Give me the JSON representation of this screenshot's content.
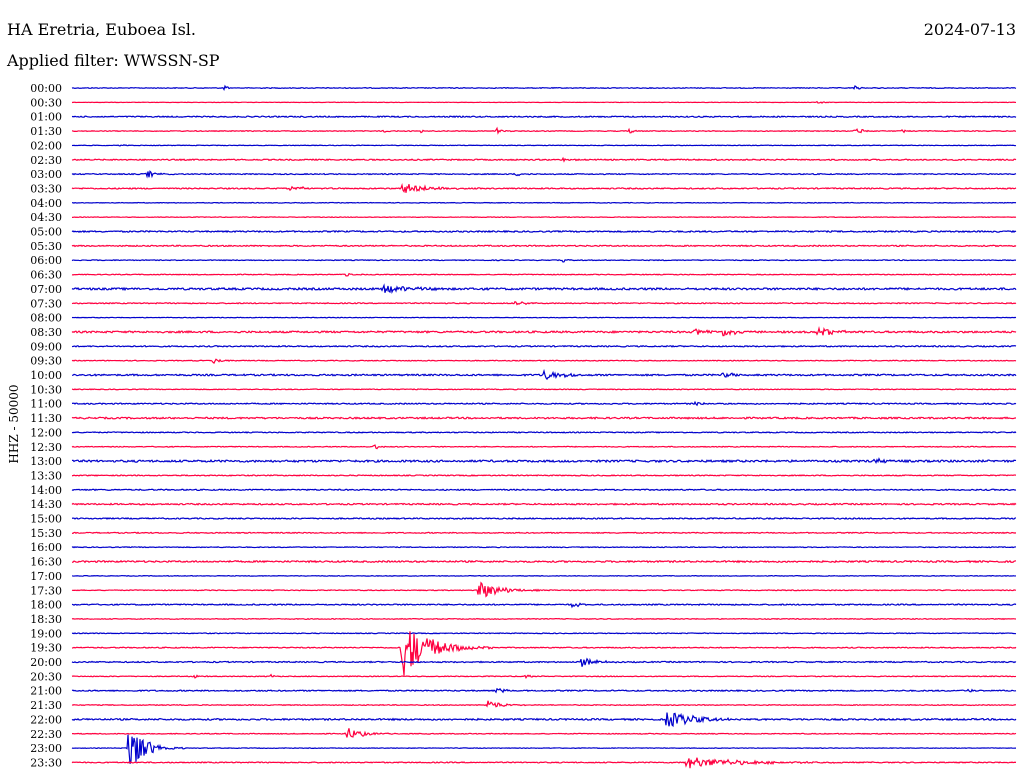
{
  "header": {
    "station": "HA Eretria, Euboea Isl.",
    "date": "2024-07-13",
    "filter": "Applied filter: WWSSN-SP"
  },
  "chart_data": {
    "type": "line",
    "channel_label": "HHZ - 50000",
    "colors": [
      "#0000cc",
      "#ff0040"
    ],
    "rows": [
      "00:00",
      "00:30",
      "01:00",
      "01:30",
      "02:00",
      "02:30",
      "03:00",
      "03:30",
      "04:00",
      "04:30",
      "05:00",
      "05:30",
      "06:00",
      "06:30",
      "07:00",
      "07:30",
      "08:00",
      "08:30",
      "09:00",
      "09:30",
      "10:00",
      "10:30",
      "11:00",
      "11:30",
      "12:00",
      "12:30",
      "13:00",
      "13:30",
      "14:00",
      "14:30",
      "15:00",
      "15:30",
      "16:00",
      "16:30",
      "17:00",
      "17:30",
      "18:00",
      "18:30",
      "19:00",
      "19:30",
      "20:00",
      "20:30",
      "21:00",
      "21:30",
      "22:00",
      "22:30",
      "23:00",
      "23:30"
    ],
    "noise": [
      0.4,
      0.2,
      0.6,
      0.4,
      0.3,
      0.6,
      0.5,
      0.6,
      0.3,
      0.3,
      0.7,
      0.6,
      0.4,
      0.4,
      1.0,
      0.5,
      0.3,
      0.9,
      0.6,
      0.4,
      0.8,
      0.4,
      0.6,
      0.8,
      0.5,
      0.4,
      1.0,
      0.5,
      0.6,
      0.7,
      0.6,
      0.5,
      0.4,
      0.8,
      0.3,
      0.4,
      0.6,
      0.4,
      0.4,
      0.5,
      0.6,
      0.4,
      0.6,
      0.4,
      0.8,
      0.4,
      0.3,
      0.5
    ],
    "events": [
      {
        "row": 0,
        "t": 0.16,
        "amp": 3,
        "dur": 0.004
      },
      {
        "row": 0,
        "t": 0.83,
        "amp": 3,
        "dur": 0.004
      },
      {
        "row": 1,
        "t": 0.79,
        "amp": 2,
        "dur": 0.006
      },
      {
        "row": 3,
        "t": 0.33,
        "amp": 2,
        "dur": 0.004
      },
      {
        "row": 3,
        "t": 0.37,
        "amp": 2,
        "dur": 0.004
      },
      {
        "row": 3,
        "t": 0.45,
        "amp": 3,
        "dur": 0.005
      },
      {
        "row": 3,
        "t": 0.59,
        "amp": 3,
        "dur": 0.004
      },
      {
        "row": 3,
        "t": 0.83,
        "amp": 4,
        "dur": 0.008
      },
      {
        "row": 3,
        "t": 0.88,
        "amp": 2,
        "dur": 0.006
      },
      {
        "row": 4,
        "t": 0.05,
        "amp": 2,
        "dur": 0.004
      },
      {
        "row": 5,
        "t": 0.52,
        "amp": 2,
        "dur": 0.006
      },
      {
        "row": 6,
        "t": 0.08,
        "amp": 4,
        "dur": 0.008
      },
      {
        "row": 6,
        "t": 0.47,
        "amp": 2,
        "dur": 0.005
      },
      {
        "row": 7,
        "t": 0.23,
        "amp": 2,
        "dur": 0.02
      },
      {
        "row": 7,
        "t": 0.35,
        "amp": 6,
        "dur": 0.02
      },
      {
        "row": 7,
        "t": 0.39,
        "amp": 3,
        "dur": 0.008
      },
      {
        "row": 12,
        "t": 0.52,
        "amp": 2,
        "dur": 0.004
      },
      {
        "row": 13,
        "t": 0.29,
        "amp": 2,
        "dur": 0.006
      },
      {
        "row": 14,
        "t": 0.33,
        "amp": 5,
        "dur": 0.025
      },
      {
        "row": 15,
        "t": 0.47,
        "amp": 3,
        "dur": 0.008
      },
      {
        "row": 17,
        "t": 0.66,
        "amp": 4,
        "dur": 0.012
      },
      {
        "row": 17,
        "t": 0.69,
        "amp": 5,
        "dur": 0.015
      },
      {
        "row": 17,
        "t": 0.79,
        "amp": 5,
        "dur": 0.015
      },
      {
        "row": 19,
        "t": 0.15,
        "amp": 3,
        "dur": 0.008
      },
      {
        "row": 20,
        "t": 0.5,
        "amp": 6,
        "dur": 0.012
      },
      {
        "row": 20,
        "t": 0.52,
        "amp": 4,
        "dur": 0.01
      },
      {
        "row": 20,
        "t": 0.69,
        "amp": 4,
        "dur": 0.008
      },
      {
        "row": 22,
        "t": 0.66,
        "amp": 2,
        "dur": 0.01
      },
      {
        "row": 25,
        "t": 0.32,
        "amp": 5,
        "dur": 0.004
      },
      {
        "row": 26,
        "t": 0.85,
        "amp": 4,
        "dur": 0.008
      },
      {
        "row": 35,
        "t": 0.43,
        "amp": 10,
        "dur": 0.02
      },
      {
        "row": 36,
        "t": 0.53,
        "amp": 3,
        "dur": 0.008
      },
      {
        "row": 39,
        "t": 0.35,
        "amp": 30,
        "dur": 0.025
      },
      {
        "row": 40,
        "t": 0.54,
        "amp": 5,
        "dur": 0.012
      },
      {
        "row": 41,
        "t": 0.13,
        "amp": 2,
        "dur": 0.006
      },
      {
        "row": 41,
        "t": 0.21,
        "amp": 2,
        "dur": 0.004
      },
      {
        "row": 41,
        "t": 0.48,
        "amp": 2,
        "dur": 0.006
      },
      {
        "row": 42,
        "t": 0.45,
        "amp": 3,
        "dur": 0.008
      },
      {
        "row": 42,
        "t": 0.95,
        "amp": 3,
        "dur": 0.004
      },
      {
        "row": 43,
        "t": 0.44,
        "amp": 6,
        "dur": 0.012
      },
      {
        "row": 44,
        "t": 0.63,
        "amp": 9,
        "dur": 0.025
      },
      {
        "row": 45,
        "t": 0.29,
        "amp": 7,
        "dur": 0.015
      },
      {
        "row": 46,
        "t": 0.06,
        "amp": 26,
        "dur": 0.015
      },
      {
        "row": 47,
        "t": 0.65,
        "amp": 6,
        "dur": 0.05
      }
    ]
  }
}
